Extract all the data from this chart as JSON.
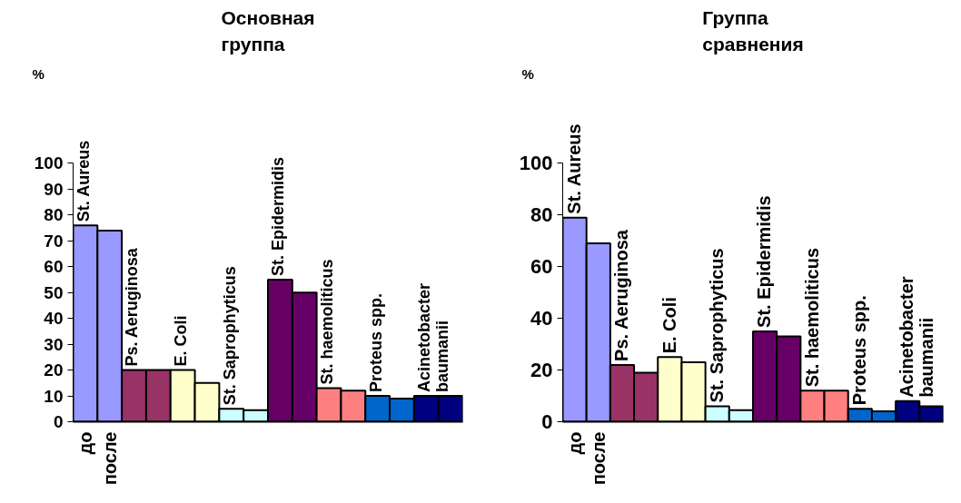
{
  "chart_data": [
    {
      "type": "bar",
      "title": "Основная группа",
      "ylabel": "%",
      "categories": [
        "до",
        "после",
        null,
        null,
        null,
        null,
        null,
        null,
        null,
        null,
        null,
        null,
        null,
        null,
        null,
        null
      ],
      "values": [
        76,
        74,
        20,
        20,
        20,
        15,
        5,
        4.5,
        55,
        50,
        13,
        12,
        10,
        9,
        10,
        10
      ],
      "colors": [
        "#9999ff",
        "#9999ff",
        "#993366",
        "#993366",
        "#ffffcc",
        "#ffffcc",
        "#ccffff",
        "#ccffff",
        "#660066",
        "#660066",
        "#ff8080",
        "#ff8080",
        "#0066cc",
        "#0066cc",
        "#000080",
        "#000080"
      ],
      "ylim": [
        0,
        100
      ],
      "yticks": [
        0,
        10,
        20,
        30,
        40,
        50,
        60,
        70,
        80,
        90,
        100
      ],
      "annotations": [
        "St. Aureus",
        "Ps. Aeruginosa",
        "E. Coli",
        "St. Saprophyticus",
        "St. Epidermidis",
        "St. haemoliticus",
        "Proteus spp.",
        "Acinetobacter baumanii"
      ]
    },
    {
      "type": "bar",
      "title": "Группа сравнения",
      "ylabel": "%",
      "categories": [
        "до",
        "после",
        null,
        null,
        null,
        null,
        null,
        null,
        null,
        null,
        null,
        null,
        null,
        null,
        null,
        null
      ],
      "values": [
        79,
        69,
        22,
        19,
        25,
        23,
        6,
        4.5,
        35,
        33,
        12,
        12,
        5,
        4,
        8,
        6
      ],
      "colors": [
        "#9999ff",
        "#9999ff",
        "#993366",
        "#993366",
        "#ffffcc",
        "#ffffcc",
        "#ccffff",
        "#ccffff",
        "#660066",
        "#660066",
        "#ff8080",
        "#ff8080",
        "#0066cc",
        "#0066cc",
        "#000080",
        "#000080"
      ],
      "ylim": [
        0,
        100
      ],
      "yticks": [
        0,
        20,
        40,
        60,
        80,
        100
      ],
      "annotations": [
        "St. Aureus",
        "Ps. Aeruginosa",
        "E. Coli",
        "St. Saprophyticus",
        "St. Epidermidis",
        "St. haemoliticus",
        "Proteus spp.",
        "Acinetobacter baumanii"
      ]
    }
  ]
}
